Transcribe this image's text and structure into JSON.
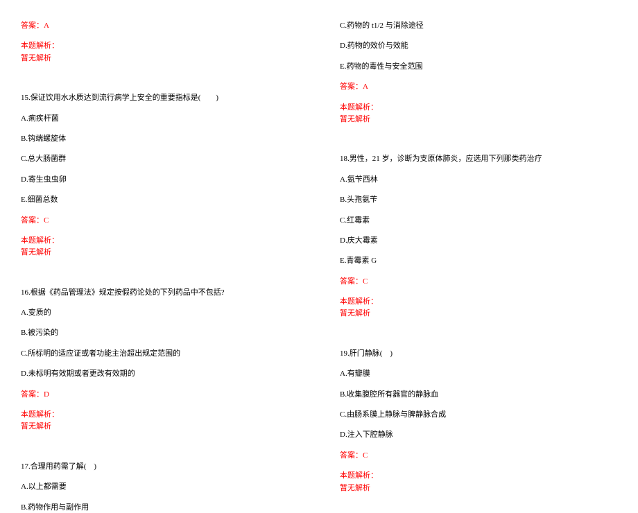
{
  "colors": {
    "text": "#000000",
    "highlight": "#ff0000",
    "background": "#ffffff"
  },
  "typography": {
    "font_family": "SimSun",
    "font_size_pt": 8,
    "line_spacing": 14
  },
  "left": {
    "ans14": "答案：A",
    "expl_label": "本题解析：",
    "expl_none": "暂无解析",
    "q15": {
      "stem": "15.保证饮用水水质达到流行病学上安全的重要指标是(　　)",
      "A": "A.痢疾杆菌",
      "B": "B.钩端螺旋体",
      "C": "C.总大肠菌群",
      "D": "D.寄生虫虫卵",
      "E": "E.细菌总数",
      "answer": "答案：C"
    },
    "q16": {
      "stem": "16.根据《药品管理法》规定按假药论处的下列药品中不包括?",
      "A": "A.变质的",
      "B": "B.被污染的",
      "C": "C.所标明的适应证或者功能主治超出规定范围的",
      "D": "D.未标明有效期或者更改有效期的",
      "answer": "答案：D"
    },
    "q17": {
      "stem": "17.合理用药需了解(　)",
      "A": "A.以上都需要",
      "B": "B.药物作用与副作用"
    }
  },
  "right": {
    "q17": {
      "C": "C.药物的 t1/2 与消除途径",
      "D": "D.药物的效价与效能",
      "E": "E.药物的毒性与安全范围",
      "answer": "答案：A"
    },
    "q18": {
      "stem": "18.男性，21 岁，诊断为支原体肺炎，应选用下列那类药治疗",
      "A": "A.氨苄西林",
      "B": "B.头孢氨苄",
      "C": "C.红霉素",
      "D": "D.庆大霉素",
      "E": "E.青霉素 G",
      "answer": "答案：C"
    },
    "q19": {
      "stem": "19.肝门静脉(　)",
      "A": "A.有瓣膜",
      "B": "B.收集腹腔所有器官的静脉血",
      "C": "C.由肠系膜上静脉与脾静脉合成",
      "D": "D.注入下腔静脉",
      "answer": "答案：C"
    }
  }
}
